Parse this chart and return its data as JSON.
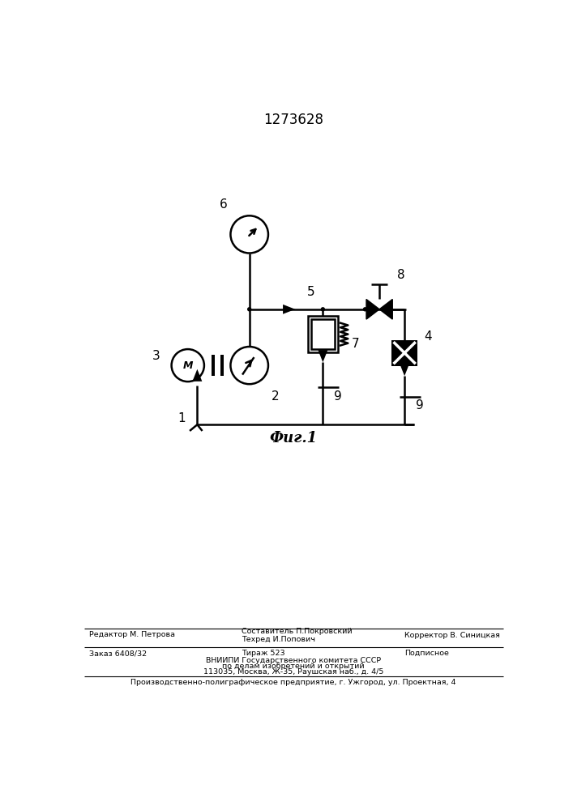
{
  "title": "1273628",
  "fig_label": "Фиг.1",
  "bg_color": "#ffffff",
  "line_color": "#000000",
  "line_width": 1.8,
  "footer_editor": "Редактор М. Петрова",
  "footer_comp1": "Составитель П.Покровский",
  "footer_tech": "Техред И.Попович",
  "footer_corr": "Корректор В. Синицкая",
  "footer_order": "Заказ 6408/32",
  "footer_tirazh": "Тираж 523",
  "footer_podp": "Подписное",
  "footer_vnipi": "ВНИИПИ Государственного комитета СССР",
  "footer_affairs": "по делам изобретений и открытий",
  "footer_address": "113035, Москва, Ж-35, Раушская наб., д. 4/5",
  "footer_plant": "Производственно-полиграфическое предприятие, г. Ужгород, ул. Проектная, 4"
}
